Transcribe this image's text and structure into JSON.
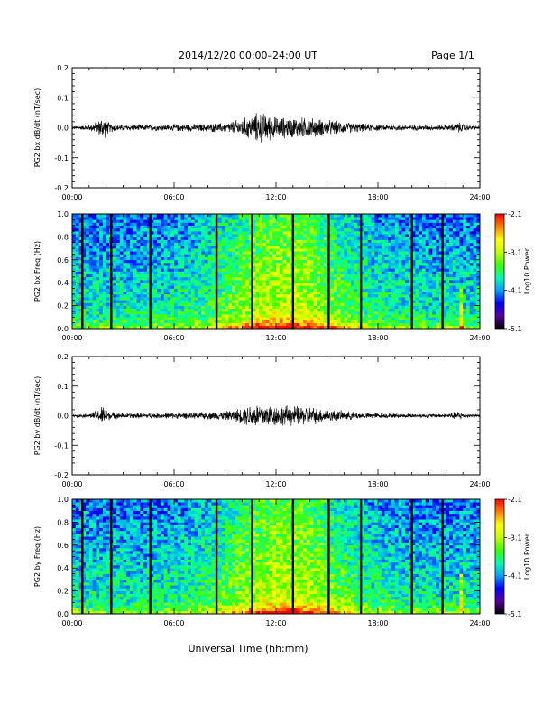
{
  "header": {
    "title": "2014/12/20  00:00–24:00 UT",
    "page": "Page 1/1"
  },
  "footer": {
    "xlabel": "Universal Time (hh:mm)"
  },
  "colors": {
    "trace": "#000000",
    "axis": "#000000",
    "colormap": [
      "#000000",
      "#5a00a0",
      "#0000ff",
      "#00a0ff",
      "#00ffb0",
      "#40ff00",
      "#c8ff00",
      "#ffff00",
      "#ff8000",
      "#ff0000"
    ]
  },
  "chart_data": [
    {
      "type": "line",
      "ylabel": "PG2 bx dB/dt (nT/sec)",
      "xlim": [
        0,
        24
      ],
      "ylim": [
        -0.2,
        0.2
      ],
      "xticks": [
        "00:00",
        "06:00",
        "12:00",
        "18:00",
        "24:00"
      ],
      "yticks": [
        "0.2",
        "0.1",
        "0.0",
        "-0.1",
        "-0.2"
      ],
      "ytick_values": [
        0.2,
        0.1,
        0.0,
        -0.1,
        -0.2
      ],
      "envelope": {
        "hours": [
          0,
          1,
          1.5,
          1.8,
          2.2,
          3,
          5,
          7,
          9,
          10,
          10.5,
          11,
          11.5,
          12,
          13,
          14,
          15,
          16,
          17,
          18,
          20,
          22,
          22.8,
          23.2,
          24
        ],
        "amplitude": [
          0.006,
          0.01,
          0.025,
          0.045,
          0.018,
          0.012,
          0.012,
          0.014,
          0.018,
          0.035,
          0.045,
          0.06,
          0.05,
          0.04,
          0.04,
          0.038,
          0.03,
          0.022,
          0.016,
          0.012,
          0.01,
          0.01,
          0.02,
          0.01,
          0.006
        ]
      }
    },
    {
      "type": "heatmap",
      "ylabel": "PG2 bx Freq (Hz)",
      "xlim": [
        0,
        24
      ],
      "ylim": [
        0,
        1
      ],
      "xticks": [
        "00:00",
        "06:00",
        "12:00",
        "18:00",
        "24:00"
      ],
      "yticks": [
        "1.0",
        "0.8",
        "0.6",
        "0.4",
        "0.2",
        "0.0"
      ],
      "ytick_values": [
        1.0,
        0.8,
        0.6,
        0.4,
        0.2,
        0.0
      ],
      "colorbar": {
        "label": "Log10 Power",
        "min": -5.1,
        "max": -2.1,
        "ticks": [
          "-2.1",
          "-3.1",
          "-4.1",
          "-5.1"
        ],
        "tick_values": [
          -2.1,
          -3.1,
          -4.1,
          -5.1
        ]
      },
      "gap_hours": [
        0.6,
        2.3,
        4.6,
        8.5,
        10.6,
        13.0,
        15.1,
        17.0,
        20.0,
        21.8
      ]
    },
    {
      "type": "line",
      "ylabel": "PG2 by dB/dt (nT/sec)",
      "xlim": [
        0,
        24
      ],
      "ylim": [
        -0.2,
        0.2
      ],
      "xticks": [
        "00:00",
        "06:00",
        "12:00",
        "18:00",
        "24:00"
      ],
      "yticks": [
        "0.2",
        "0.1",
        "0.0",
        "-0.1",
        "-0.2"
      ],
      "ytick_values": [
        0.2,
        0.1,
        0.0,
        -0.1,
        -0.2
      ],
      "envelope": {
        "hours": [
          0,
          1,
          1.5,
          1.8,
          2.2,
          3,
          5,
          7,
          9,
          10,
          10.5,
          11,
          11.5,
          12,
          13,
          14,
          15,
          16,
          17,
          18,
          20,
          22,
          22.8,
          23.2,
          24
        ],
        "amplitude": [
          0.005,
          0.008,
          0.02,
          0.04,
          0.015,
          0.01,
          0.01,
          0.012,
          0.016,
          0.03,
          0.045,
          0.05,
          0.045,
          0.04,
          0.038,
          0.035,
          0.025,
          0.018,
          0.012,
          0.01,
          0.008,
          0.008,
          0.018,
          0.008,
          0.005
        ]
      }
    },
    {
      "type": "heatmap",
      "ylabel": "PG2 by Freq (Hz)",
      "xlim": [
        0,
        24
      ],
      "ylim": [
        0,
        1
      ],
      "xticks": [
        "00:00",
        "06:00",
        "12:00",
        "18:00",
        "24:00"
      ],
      "yticks": [
        "1.0",
        "0.8",
        "0.6",
        "0.4",
        "0.2",
        "0.0"
      ],
      "ytick_values": [
        1.0,
        0.8,
        0.6,
        0.4,
        0.2,
        0.0
      ],
      "colorbar": {
        "label": "Log10 Power",
        "min": -5.1,
        "max": -2.1,
        "ticks": [
          "-2.1",
          "-3.1",
          "-4.1",
          "-5.1"
        ],
        "tick_values": [
          -2.1,
          -3.1,
          -4.1,
          -5.1
        ]
      },
      "gap_hours": [
        0.6,
        2.3,
        4.6,
        8.5,
        10.6,
        13.0,
        15.1,
        17.0,
        20.0,
        21.8
      ]
    }
  ]
}
